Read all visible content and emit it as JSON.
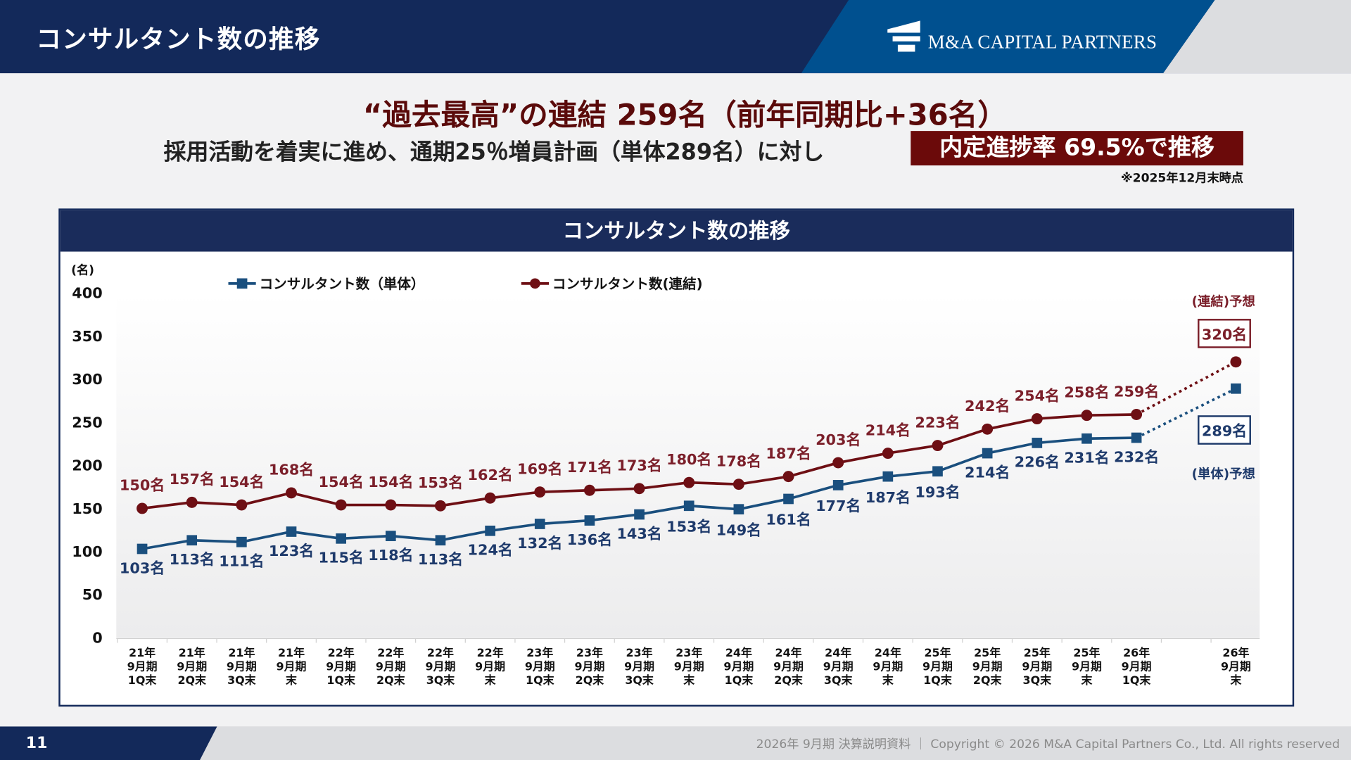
{
  "header": {
    "title": "コンサルタント数の推移",
    "logo_text": "M&A CAPITAL PARTNERS"
  },
  "headline": {
    "line1": "“過去最高”の連結 259名（前年同期比+36名）",
    "line2": "採用活動を着実に進め、通期25％増員計画（単体289名）に対し",
    "kpi": "内定進捗率 69.5%で推移",
    "as_of": "※2025年12月末時点"
  },
  "panel": {
    "title": "コンサルタント数の推移"
  },
  "footer": {
    "page": "11",
    "text": "2026年 9月期 決算説明資料 ｜ Copyright © 2026 M&A Capital Partners Co., Ltd. All rights reserved"
  },
  "chart_data": {
    "type": "line",
    "ylabel": "(名)",
    "ylim": [
      0,
      400
    ],
    "yticks": [
      0,
      50,
      100,
      150,
      200,
      250,
      300,
      350,
      400
    ],
    "grid": false,
    "legend_placement": "top-left",
    "unit_suffix": "名",
    "categories": [
      "21年\n9月期\n1Q末",
      "21年\n9月期\n2Q末",
      "21年\n9月期\n3Q末",
      "21年\n9月期\n末",
      "22年\n9月期\n1Q末",
      "22年\n9月期\n2Q末",
      "22年\n9月期\n3Q末",
      "22年\n9月期\n末",
      "23年\n9月期\n1Q末",
      "23年\n9月期\n2Q末",
      "23年\n9月期\n3Q末",
      "23年\n9月期\n末",
      "24年\n9月期\n1Q末",
      "24年\n9月期\n2Q末",
      "24年\n9月期\n3Q末",
      "24年\n9月期\n末",
      "25年\n9月期\n1Q末",
      "25年\n9月期\n2Q末",
      "25年\n9月期\n3Q末",
      "25年\n9月期\n末",
      "26年\n9月期\n1Q末",
      "",
      "26年\n9月期\n末"
    ],
    "series": [
      {
        "name": "コンサルタント数（単体）",
        "color": "#1a4f7e",
        "label_color": "#1e3a6b",
        "marker": "square",
        "values": [
          103,
          113,
          111,
          123,
          115,
          118,
          113,
          124,
          132,
          136,
          143,
          153,
          149,
          161,
          177,
          187,
          193,
          214,
          226,
          231,
          232,
          null,
          null
        ],
        "forecast": {
          "value": 289,
          "label": "(単体)予想"
        }
      },
      {
        "name": "コンサルタント数(連結)",
        "color": "#6e0f14",
        "label_color": "#7b1f2a",
        "marker": "circle",
        "values": [
          150,
          157,
          154,
          168,
          154,
          154,
          153,
          162,
          169,
          171,
          173,
          180,
          178,
          187,
          203,
          214,
          223,
          242,
          254,
          258,
          259,
          null,
          null
        ],
        "forecast": {
          "value": 320,
          "label": "(連結)予想"
        }
      }
    ]
  }
}
